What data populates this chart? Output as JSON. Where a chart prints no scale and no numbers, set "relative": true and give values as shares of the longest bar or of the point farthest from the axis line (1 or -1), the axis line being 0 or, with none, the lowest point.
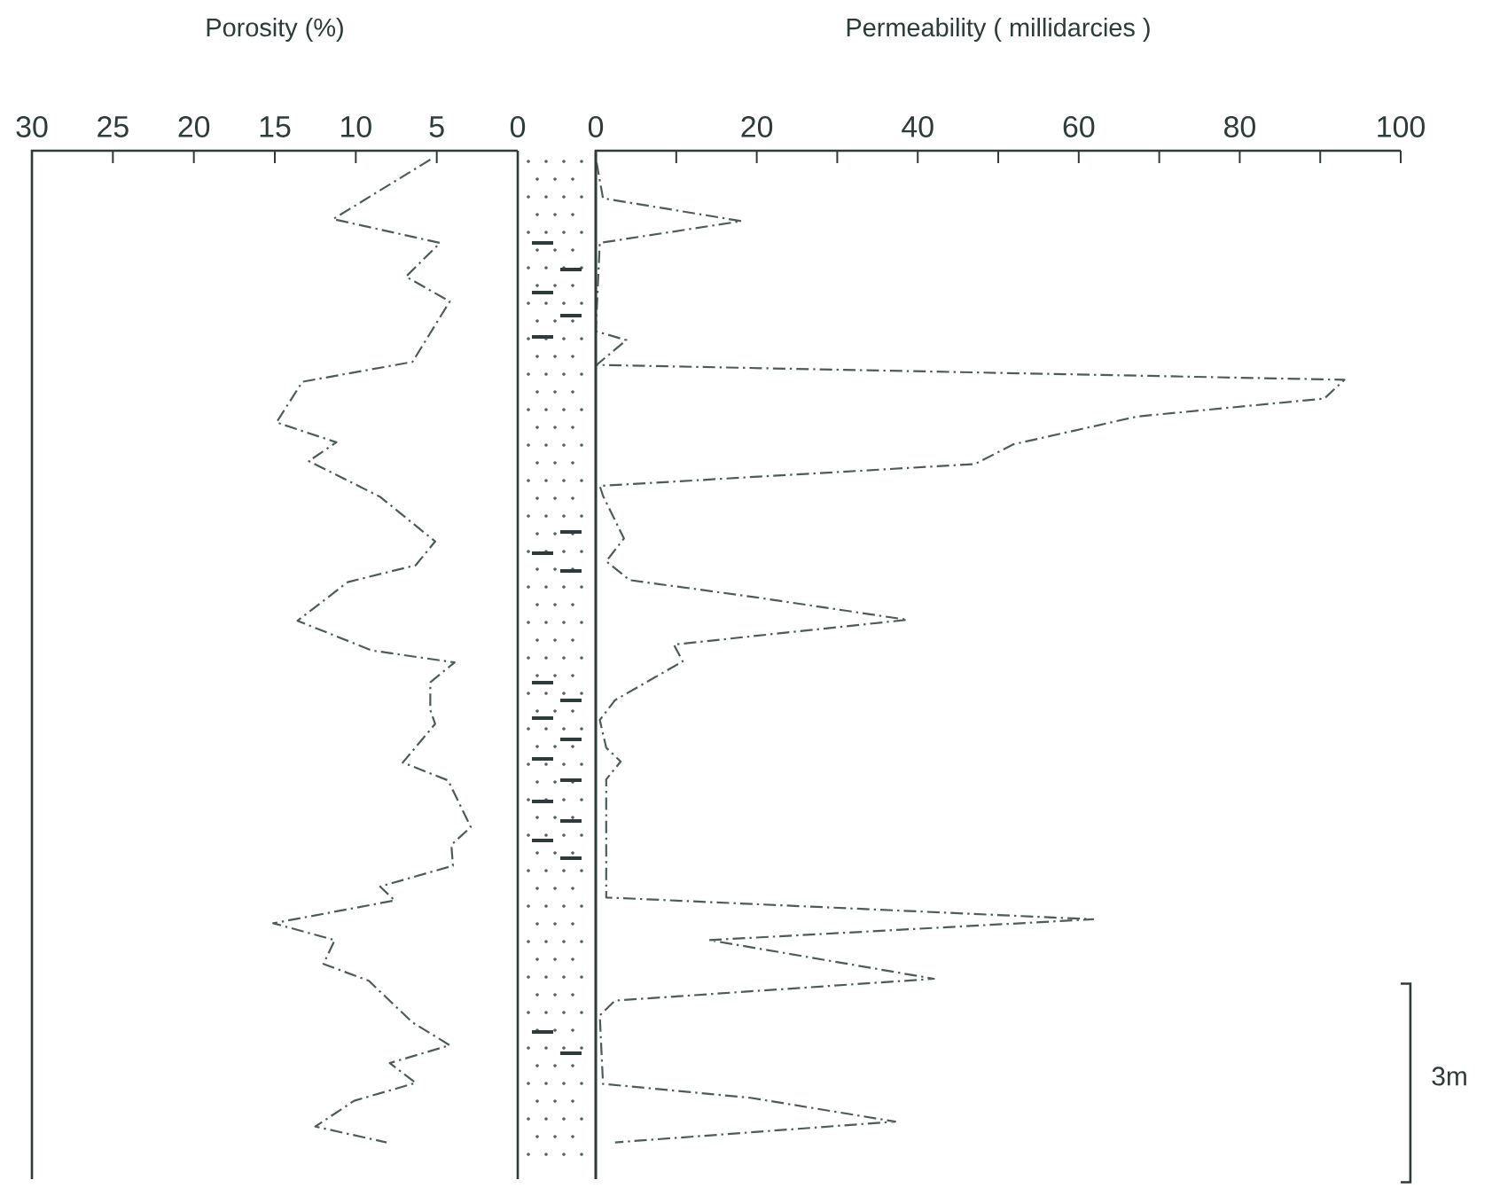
{
  "chart_data": [
    {
      "type": "line",
      "title": "Porosity (%)",
      "xlim": [
        30,
        0
      ],
      "xticks": [
        30,
        25,
        20,
        15,
        10,
        5,
        0
      ],
      "relative": true,
      "tick_labels": "x",
      "line_style": "dashed",
      "series": [
        {
          "color": "#4d5b59",
          "x": [
            5.4,
            11.4,
            4.8,
            6.9,
            4.2,
            6.5,
            13.3,
            14.9,
            11.2,
            12.9,
            8.5,
            5.1,
            6.3,
            10.5,
            13.6,
            9.0,
            3.9,
            5.4,
            5.4,
            5.1,
            7.1,
            4.3,
            2.9,
            4.1,
            4.0,
            8.5,
            7.6,
            15.1,
            11.3,
            12.0,
            9.2,
            6.5,
            4.2,
            7.9,
            6.3,
            10.1,
            12.5,
            8.1
          ],
          "values": [
            -0.009,
            -0.069,
            -0.093,
            -0.127,
            -0.152,
            -0.213,
            -0.233,
            -0.274,
            -0.294,
            -0.313,
            -0.349,
            -0.394,
            -0.418,
            -0.435,
            -0.474,
            -0.504,
            -0.516,
            -0.536,
            -0.564,
            -0.578,
            -0.617,
            -0.635,
            -0.682,
            -0.7,
            -0.721,
            -0.742,
            -0.756,
            -0.779,
            -0.796,
            -0.82,
            -0.837,
            -0.879,
            -0.902,
            -0.92,
            -0.94,
            -0.958,
            -0.984,
            -1
          ]
        }
      ]
    },
    {
      "type": "line",
      "title": "Permeability ( millidarcies )",
      "xlim": [
        0,
        100
      ],
      "xticks": [
        0,
        {
          "value": 10,
          "label": null
        },
        20,
        {
          "value": 30,
          "label": null
        },
        40,
        {
          "value": 50,
          "label": null
        },
        60,
        {
          "value": 70,
          "label": null
        },
        80,
        {
          "value": 90,
          "label": null
        },
        100
      ],
      "relative": true,
      "tick_labels": "x",
      "line_style": "dashed",
      "annotations": [
        "3m"
      ],
      "series": [
        {
          "color": "#4d5b59",
          "x": [
            0.1,
            0.9,
            18.1,
            0.5,
            0,
            3.8,
            0.1,
            93.0,
            90.5,
            67.3,
            51.9,
            47.1,
            0.5,
            0.9,
            3.5,
            1.3,
            4.2,
            19.6,
            38.7,
            9.7,
            10.8,
            2.4,
            0.5,
            1.3,
            3.1,
            1.3,
            1.3,
            61.8,
            14.1,
            30.6,
            42.0,
            2.4,
            0.5,
            0.9,
            19.2,
            37.2,
            2.4
          ],
          "values": [
            -0.012,
            -0.048,
            -0.071,
            -0.093,
            -0.182,
            -0.191,
            -0.216,
            -0.231,
            -0.25,
            -0.268,
            -0.296,
            -0.316,
            -0.338,
            -0.348,
            -0.391,
            -0.414,
            -0.433,
            -0.45,
            -0.473,
            -0.498,
            -0.515,
            -0.554,
            -0.574,
            -0.602,
            -0.616,
            -0.634,
            -0.753,
            -0.775,
            -0.796,
            -0.819,
            -0.835,
            -0.857,
            -0.872,
            -0.941,
            -0.955,
            -0.979,
            -1
          ]
        }
      ]
    }
  ]
}
